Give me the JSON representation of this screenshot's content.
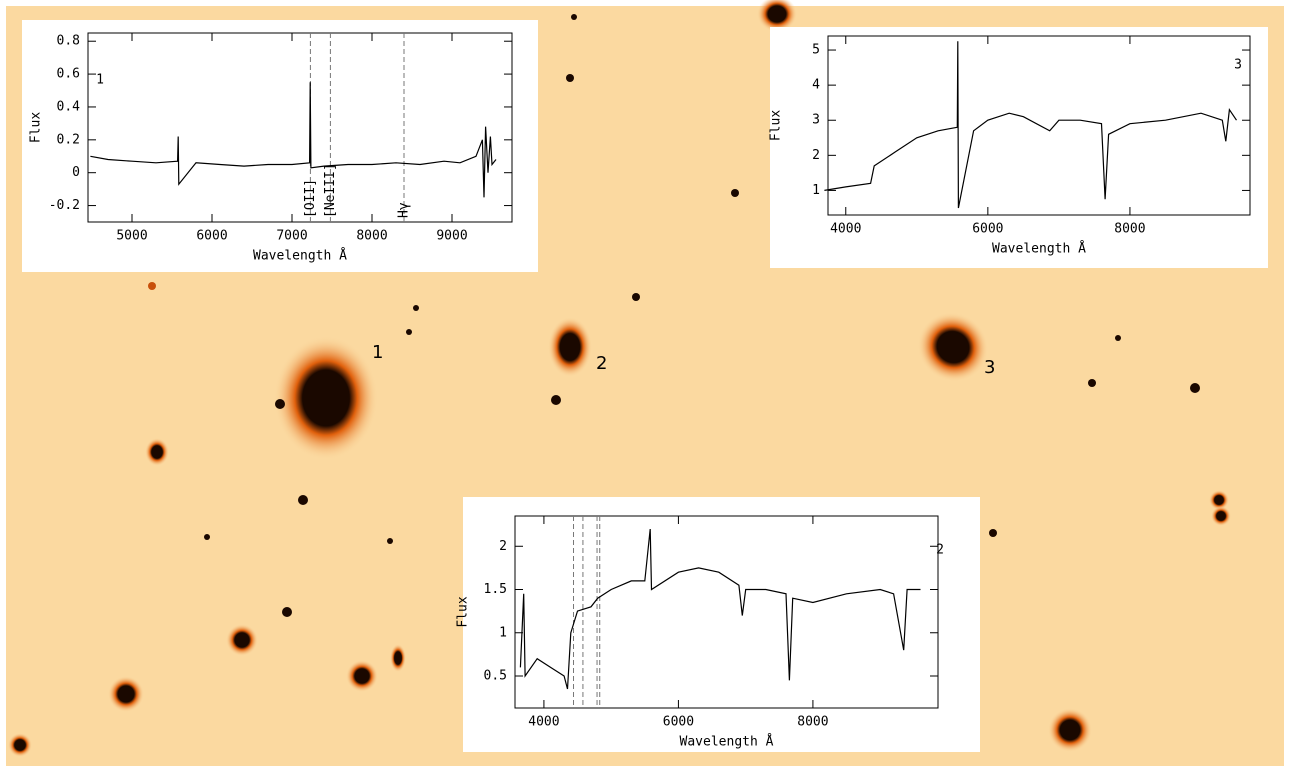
{
  "image_labels": [
    "1",
    "2",
    "3"
  ],
  "chart_data": [
    {
      "type": "line",
      "panel_label": "1",
      "y_label": "Flux",
      "x_label": "Wavelength Å",
      "x": [
        4480,
        4700,
        5000,
        5300,
        5570,
        5577,
        5585,
        5800,
        6100,
        6400,
        6700,
        7000,
        7220,
        7228,
        7236,
        7400,
        7700,
        8000,
        8300,
        8600,
        8900,
        9100,
        9300,
        9380,
        9400,
        9420,
        9450,
        9480,
        9500,
        9550
      ],
      "values": [
        0.1,
        0.08,
        0.07,
        0.06,
        0.07,
        0.22,
        -0.07,
        0.06,
        0.05,
        0.04,
        0.05,
        0.05,
        0.06,
        0.55,
        0.03,
        0.04,
        0.05,
        0.05,
        0.06,
        0.05,
        0.07,
        0.06,
        0.1,
        0.2,
        -0.15,
        0.28,
        0.0,
        0.22,
        0.05,
        0.08
      ],
      "color": "#000000",
      "markers": [
        7230,
        7480,
        8400
      ],
      "marker_labels": [
        "[OII]",
        "[NeIII]",
        "Hγ"
      ],
      "xlim": [
        4450,
        9750
      ],
      "xticks": [
        5000,
        6000,
        7000,
        8000,
        9000
      ],
      "ylim": [
        -0.3,
        0.85
      ],
      "yticks": [
        -0.2,
        0,
        0.2,
        0.4,
        0.6,
        0.8
      ]
    },
    {
      "type": "line",
      "panel_label": "3",
      "y_label": "Flux",
      "x_label": "Wavelength Å",
      "x": [
        3700,
        4000,
        4350,
        4400,
        4700,
        5000,
        5300,
        5570,
        5577,
        5585,
        5800,
        6000,
        6300,
        6500,
        6870,
        7000,
        7300,
        7600,
        7650,
        7700,
        8000,
        8500,
        9000,
        9300,
        9350,
        9400,
        9500
      ],
      "values": [
        1.0,
        1.1,
        1.2,
        1.7,
        2.1,
        2.5,
        2.7,
        2.8,
        5.25,
        0.5,
        2.7,
        3.0,
        3.2,
        3.1,
        2.7,
        3.0,
        3.0,
        2.9,
        0.75,
        2.6,
        2.9,
        3.0,
        3.2,
        3.0,
        2.4,
        3.3,
        3.0
      ],
      "color": "#000000",
      "xlim": [
        3750,
        9690
      ],
      "xticks": [
        4000,
        6000,
        8000
      ],
      "ylim": [
        0.3,
        5.4
      ],
      "yticks": [
        1,
        2,
        3,
        4,
        5
      ]
    },
    {
      "type": "line",
      "panel_label": "2",
      "y_label": "Flux",
      "x_label": "Wavelength Å",
      "x": [
        3650,
        3700,
        3720,
        3900,
        4100,
        4300,
        4350,
        4400,
        4500,
        4700,
        4800,
        5000,
        5300,
        5500,
        5580,
        5600,
        6000,
        6300,
        6600,
        6900,
        6950,
        7000,
        7300,
        7600,
        7650,
        7700,
        8000,
        8500,
        9000,
        9200,
        9350,
        9400,
        9600
      ],
      "values": [
        0.6,
        1.45,
        0.5,
        0.7,
        0.6,
        0.5,
        0.35,
        1.0,
        1.25,
        1.3,
        1.4,
        1.5,
        1.6,
        1.6,
        2.2,
        1.5,
        1.7,
        1.75,
        1.7,
        1.55,
        1.2,
        1.5,
        1.5,
        1.45,
        0.45,
        1.4,
        1.35,
        1.45,
        1.5,
        1.45,
        0.8,
        1.5,
        1.5
      ],
      "color": "#000000",
      "markers": [
        4440,
        4580,
        4790,
        4830
      ],
      "xlim": [
        3570,
        9860
      ],
      "xticks": [
        4000,
        6000,
        8000
      ],
      "ylim": [
        0.13,
        2.35
      ],
      "yticks": [
        0.5,
        1,
        1.5,
        2
      ]
    }
  ]
}
